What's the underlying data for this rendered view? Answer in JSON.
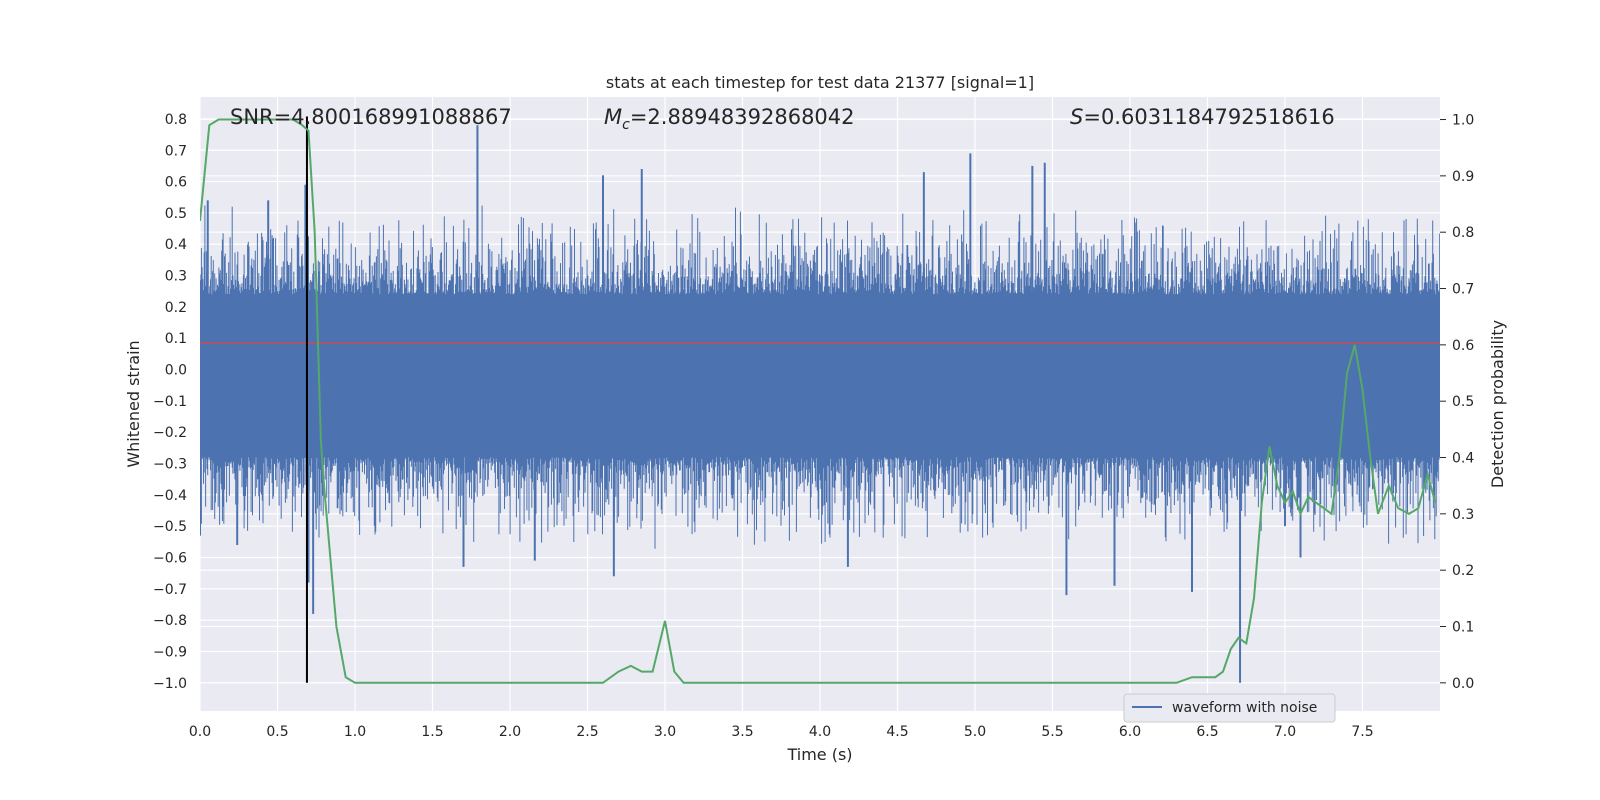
{
  "chart_data": {
    "type": "line",
    "title": "stats at each timestep for test data 21377 [signal=1]",
    "xlabel": "Time (s)",
    "ylabel_left": "Whitened strain",
    "ylabel_right": "Detection probability",
    "xlim": [
      0.0,
      8.0
    ],
    "ylim_left": [
      -1.09,
      0.87
    ],
    "ylim_right": [
      -0.05,
      1.04
    ],
    "x_ticks": [
      "0.0",
      "0.5",
      "1.0",
      "1.5",
      "2.0",
      "2.5",
      "3.0",
      "3.5",
      "4.0",
      "4.5",
      "5.0",
      "5.5",
      "6.0",
      "6.5",
      "7.0",
      "7.5"
    ],
    "y_left_ticks": [
      "0.8",
      "0.7",
      "0.6",
      "0.5",
      "0.4",
      "0.3",
      "0.2",
      "0.1",
      "0.0",
      "−0.1",
      "−0.2",
      "−0.3",
      "−0.4",
      "−0.5",
      "−0.6",
      "−0.7",
      "−0.8",
      "−0.9",
      "−1.0"
    ],
    "y_right_ticks": [
      "1.0",
      "0.9",
      "0.8",
      "0.7",
      "0.6",
      "0.5",
      "0.4",
      "0.3",
      "0.2",
      "0.1",
      "0.0"
    ],
    "annotations": {
      "snr": "SNR=4.800168991088867",
      "mc_symbol": "M",
      "mc_sub": "c",
      "mc_value": "=2.88948392868042",
      "s_symbol": "S",
      "s_value": "=0.6031184792518616"
    },
    "threshold_line": {
      "value": 0.6031184792518616,
      "axis": "right",
      "color": "#c44e52"
    },
    "detection_time_line": {
      "x": 0.69,
      "color": "#000000"
    },
    "legend": {
      "label": "waveform with noise",
      "placement": "lower-right"
    },
    "series": [
      {
        "name": "waveform with noise",
        "axis": "left",
        "color": "#4c72b0",
        "style": "dense-noise",
        "core_range": [
          -0.28,
          0.24
        ],
        "envelope_range": [
          -0.5,
          0.45
        ],
        "notable_spikes": [
          [
            0.0,
            -0.53
          ],
          [
            0.05,
            0.54
          ],
          [
            0.24,
            -0.56
          ],
          [
            0.44,
            0.54
          ],
          [
            0.68,
            0.59
          ],
          [
            0.7,
            -0.68
          ],
          [
            0.73,
            -0.78
          ],
          [
            1.7,
            -0.63
          ],
          [
            1.79,
            0.78
          ],
          [
            2.16,
            -0.61
          ],
          [
            2.6,
            0.62
          ],
          [
            2.67,
            -0.66
          ],
          [
            2.85,
            0.64
          ],
          [
            4.18,
            -0.63
          ],
          [
            4.67,
            0.63
          ],
          [
            4.97,
            0.69
          ],
          [
            5.37,
            0.65
          ],
          [
            5.45,
            0.66
          ],
          [
            5.59,
            -0.72
          ],
          [
            5.9,
            -0.69
          ],
          [
            6.4,
            -0.71
          ],
          [
            6.71,
            -1.0
          ],
          [
            7.0,
            -0.5
          ],
          [
            7.1,
            -0.6
          ]
        ]
      },
      {
        "name": "detection probability",
        "axis": "right",
        "color": "#55a868",
        "x": [
          0.0,
          0.06,
          0.12,
          0.2,
          0.3,
          0.4,
          0.5,
          0.6,
          0.66,
          0.7,
          0.74,
          0.78,
          0.8,
          0.88,
          0.94,
          1.0,
          1.1,
          1.2,
          1.3,
          1.4,
          1.5,
          1.6,
          1.7,
          1.8,
          1.9,
          2.0,
          2.1,
          2.2,
          2.3,
          2.4,
          2.5,
          2.55,
          2.6,
          2.7,
          2.78,
          2.85,
          2.92,
          3.0,
          3.06,
          3.12,
          3.2,
          3.3,
          3.4,
          3.5,
          3.6,
          3.8,
          4.0,
          4.2,
          4.4,
          4.5,
          4.6,
          4.7,
          4.8,
          4.9,
          5.0,
          5.2,
          5.4,
          5.6,
          5.8,
          6.0,
          6.2,
          6.3,
          6.4,
          6.5,
          6.55,
          6.6,
          6.65,
          6.7,
          6.75,
          6.8,
          6.85,
          6.9,
          6.95,
          7.0,
          7.05,
          7.1,
          7.15,
          7.2,
          7.25,
          7.3,
          7.35,
          7.4,
          7.45,
          7.5,
          7.55,
          7.6,
          7.67,
          7.73,
          7.8,
          7.86,
          7.92,
          7.97
        ],
        "y": [
          0.82,
          0.99,
          1.0,
          1.0,
          1.0,
          1.0,
          1.0,
          1.0,
          0.99,
          0.98,
          0.8,
          0.43,
          0.35,
          0.1,
          0.01,
          0.0,
          0.0,
          0.0,
          0.0,
          0.0,
          0.0,
          0.0,
          0.0,
          0.0,
          0.0,
          0.0,
          0.0,
          0.0,
          0.0,
          0.0,
          0.0,
          0.0,
          0.0,
          0.02,
          0.03,
          0.02,
          0.02,
          0.11,
          0.02,
          0.0,
          0.0,
          0.0,
          0.0,
          0.0,
          0.0,
          0.0,
          0.0,
          0.0,
          0.0,
          0.0,
          0.0,
          0.0,
          0.0,
          0.0,
          0.0,
          0.0,
          0.0,
          0.0,
          0.0,
          0.0,
          0.0,
          0.0,
          0.01,
          0.01,
          0.01,
          0.02,
          0.06,
          0.08,
          0.07,
          0.15,
          0.32,
          0.42,
          0.35,
          0.32,
          0.34,
          0.3,
          0.33,
          0.32,
          0.31,
          0.3,
          0.4,
          0.55,
          0.6,
          0.52,
          0.4,
          0.3,
          0.35,
          0.31,
          0.3,
          0.31,
          0.37,
          0.32
        ]
      }
    ]
  }
}
